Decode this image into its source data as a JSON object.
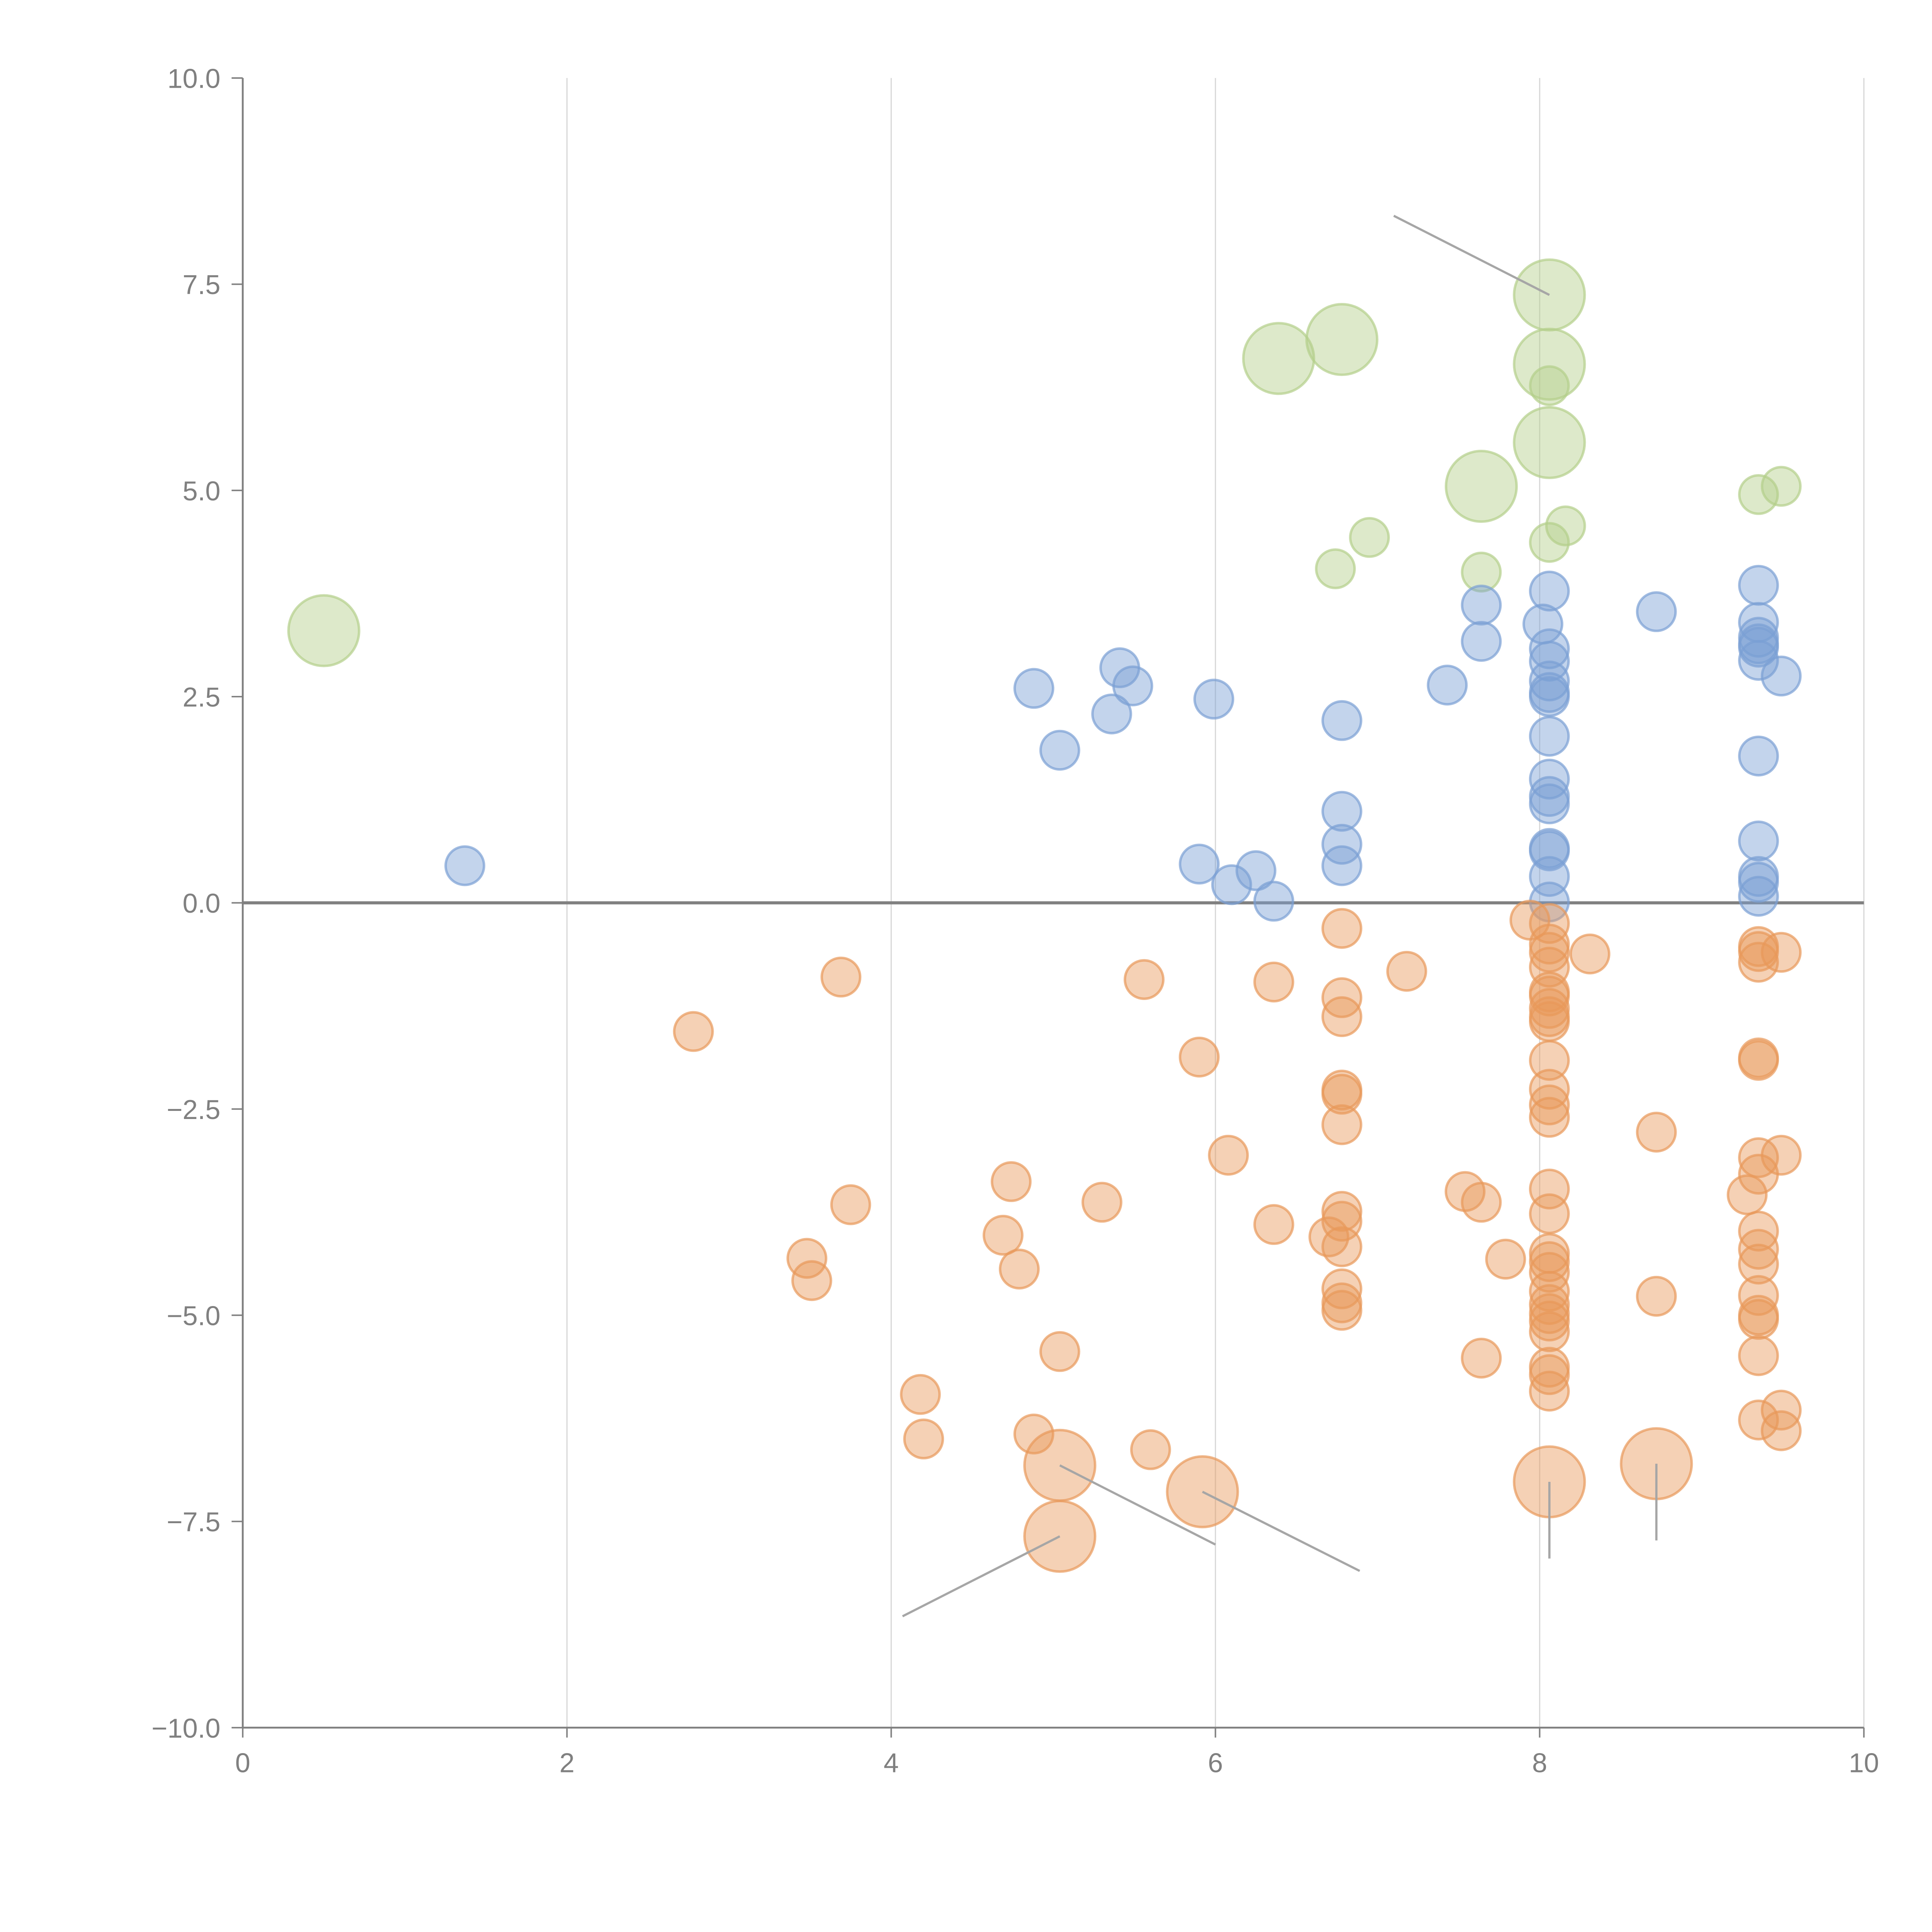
{
  "chart_data": {
    "type": "scatter",
    "title": "",
    "xlabel": "",
    "ylabel": "",
    "xlim": [
      0,
      10
    ],
    "ylim": [
      -10,
      10
    ],
    "grid": "vertical",
    "legend": "none",
    "x_ticks": [
      "0",
      "2",
      "4",
      "6",
      "8",
      "10"
    ],
    "x_tick_values": [
      0,
      2,
      4,
      6,
      8,
      10
    ],
    "y_ticks": [
      "10.0",
      "7.5",
      "5.0",
      "2.5",
      "0.0",
      "−2.5",
      "−5.0",
      "−7.5",
      "−10.0"
    ],
    "y_tick_values": [
      10,
      7.5,
      5,
      2.5,
      0,
      -2.5,
      -5,
      -7.5,
      -10
    ],
    "colors": {
      "blue": "#7b9fd4",
      "orange": "#e8995a",
      "green": "#b3cf8a",
      "axis": "#808080",
      "grid": "#d9d9d9"
    },
    "series": [
      {
        "name": "green",
        "color_key": "green",
        "points": [
          {
            "x": 0.5,
            "y": 3.3,
            "size": "large"
          },
          {
            "x": 6.39,
            "y": 6.6,
            "size": "large"
          },
          {
            "x": 6.78,
            "y": 6.83,
            "size": "large"
          },
          {
            "x": 8.06,
            "y": 7.37,
            "size": "large"
          },
          {
            "x": 8.06,
            "y": 6.53,
            "size": "large"
          },
          {
            "x": 8.06,
            "y": 6.27,
            "size": "small"
          },
          {
            "x": 8.06,
            "y": 5.58,
            "size": "large"
          },
          {
            "x": 7.64,
            "y": 5.05,
            "size": "large"
          },
          {
            "x": 9.35,
            "y": 4.95,
            "size": "small"
          },
          {
            "x": 9.49,
            "y": 5.05,
            "size": "small"
          },
          {
            "x": 8.16,
            "y": 4.57,
            "size": "small"
          },
          {
            "x": 8.06,
            "y": 4.37,
            "size": "small"
          },
          {
            "x": 6.95,
            "y": 4.43,
            "size": "small"
          },
          {
            "x": 6.74,
            "y": 4.05,
            "size": "small"
          },
          {
            "x": 7.64,
            "y": 4.01,
            "size": "small"
          }
        ]
      },
      {
        "name": "blue",
        "color_key": "blue",
        "points": [
          {
            "x": 1.37,
            "y": 0.45,
            "size": "small"
          },
          {
            "x": 4.88,
            "y": 2.6,
            "size": "small"
          },
          {
            "x": 5.04,
            "y": 1.85,
            "size": "small"
          },
          {
            "x": 5.41,
            "y": 2.85,
            "size": "small"
          },
          {
            "x": 5.49,
            "y": 2.63,
            "size": "small"
          },
          {
            "x": 5.36,
            "y": 2.29,
            "size": "small"
          },
          {
            "x": 5.99,
            "y": 2.47,
            "size": "small"
          },
          {
            "x": 5.9,
            "y": 0.47,
            "size": "small"
          },
          {
            "x": 6.1,
            "y": 0.22,
            "size": "small"
          },
          {
            "x": 6.25,
            "y": 0.39,
            "size": "small"
          },
          {
            "x": 6.36,
            "y": 0.02,
            "size": "small"
          },
          {
            "x": 6.78,
            "y": 2.21,
            "size": "small"
          },
          {
            "x": 6.78,
            "y": 1.11,
            "size": "small"
          },
          {
            "x": 6.78,
            "y": 0.71,
            "size": "small"
          },
          {
            "x": 6.78,
            "y": 0.45,
            "size": "small"
          },
          {
            "x": 7.43,
            "y": 2.64,
            "size": "small"
          },
          {
            "x": 7.64,
            "y": 3.61,
            "size": "small"
          },
          {
            "x": 7.64,
            "y": 3.17,
            "size": "small"
          },
          {
            "x": 8.06,
            "y": 3.78,
            "size": "small"
          },
          {
            "x": 8.02,
            "y": 3.38,
            "size": "small"
          },
          {
            "x": 8.06,
            "y": 3.08,
            "size": "small"
          },
          {
            "x": 8.06,
            "y": 2.93,
            "size": "small"
          },
          {
            "x": 8.06,
            "y": 2.69,
            "size": "small"
          },
          {
            "x": 8.06,
            "y": 2.55,
            "size": "small"
          },
          {
            "x": 8.06,
            "y": 2.5,
            "size": "small"
          },
          {
            "x": 8.06,
            "y": 2.02,
            "size": "small"
          },
          {
            "x": 8.06,
            "y": 1.5,
            "size": "small"
          },
          {
            "x": 8.06,
            "y": 1.29,
            "size": "small"
          },
          {
            "x": 8.06,
            "y": 1.2,
            "size": "small"
          },
          {
            "x": 8.06,
            "y": 0.66,
            "size": "small"
          },
          {
            "x": 8.06,
            "y": 0.63,
            "size": "small"
          },
          {
            "x": 8.06,
            "y": 0.32,
            "size": "small"
          },
          {
            "x": 8.06,
            "y": 0.01,
            "size": "small"
          },
          {
            "x": 8.72,
            "y": 3.53,
            "size": "small"
          },
          {
            "x": 9.35,
            "y": 3.85,
            "size": "small"
          },
          {
            "x": 9.35,
            "y": 3.4,
            "size": "small"
          },
          {
            "x": 9.35,
            "y": 3.22,
            "size": "small"
          },
          {
            "x": 9.35,
            "y": 3.14,
            "size": "small"
          },
          {
            "x": 9.35,
            "y": 3.1,
            "size": "small"
          },
          {
            "x": 9.35,
            "y": 2.94,
            "size": "small"
          },
          {
            "x": 9.49,
            "y": 2.75,
            "size": "small"
          },
          {
            "x": 9.35,
            "y": 1.78,
            "size": "small"
          },
          {
            "x": 9.35,
            "y": 0.75,
            "size": "small"
          },
          {
            "x": 9.35,
            "y": 0.32,
            "size": "small"
          },
          {
            "x": 9.35,
            "y": 0.25,
            "size": "small"
          },
          {
            "x": 9.35,
            "y": 0.08,
            "size": "small"
          }
        ]
      },
      {
        "name": "orange",
        "color_key": "orange",
        "points": [
          {
            "x": 2.78,
            "y": -1.56,
            "size": "small"
          },
          {
            "x": 3.69,
            "y": -0.9,
            "size": "small"
          },
          {
            "x": 3.75,
            "y": -3.66,
            "size": "small"
          },
          {
            "x": 3.48,
            "y": -4.31,
            "size": "small"
          },
          {
            "x": 3.51,
            "y": -4.58,
            "size": "small"
          },
          {
            "x": 4.18,
            "y": -5.96,
            "size": "small"
          },
          {
            "x": 4.2,
            "y": -6.5,
            "size": "small"
          },
          {
            "x": 4.74,
            "y": -3.38,
            "size": "small"
          },
          {
            "x": 4.69,
            "y": -4.03,
            "size": "small"
          },
          {
            "x": 4.79,
            "y": -4.44,
            "size": "small"
          },
          {
            "x": 4.88,
            "y": -6.44,
            "size": "small"
          },
          {
            "x": 5.04,
            "y": -5.44,
            "size": "small"
          },
          {
            "x": 5.04,
            "y": -6.82,
            "size": "large"
          },
          {
            "x": 5.04,
            "y": -7.68,
            "size": "large"
          },
          {
            "x": 5.3,
            "y": -3.63,
            "size": "small"
          },
          {
            "x": 5.56,
            "y": -0.93,
            "size": "small"
          },
          {
            "x": 5.6,
            "y": -6.63,
            "size": "small"
          },
          {
            "x": 5.9,
            "y": -1.87,
            "size": "small"
          },
          {
            "x": 5.92,
            "y": -7.14,
            "size": "large"
          },
          {
            "x": 6.08,
            "y": -3.06,
            "size": "small"
          },
          {
            "x": 6.36,
            "y": -0.96,
            "size": "small"
          },
          {
            "x": 6.36,
            "y": -3.9,
            "size": "small"
          },
          {
            "x": 6.7,
            "y": -4.05,
            "size": "small"
          },
          {
            "x": 6.78,
            "y": -0.31,
            "size": "small"
          },
          {
            "x": 6.78,
            "y": -1.15,
            "size": "small"
          },
          {
            "x": 6.78,
            "y": -1.38,
            "size": "small"
          },
          {
            "x": 6.78,
            "y": -2.27,
            "size": "small"
          },
          {
            "x": 6.78,
            "y": -2.32,
            "size": "small"
          },
          {
            "x": 6.78,
            "y": -2.69,
            "size": "small"
          },
          {
            "x": 6.78,
            "y": -3.74,
            "size": "small"
          },
          {
            "x": 6.78,
            "y": -3.86,
            "size": "small"
          },
          {
            "x": 6.78,
            "y": -4.17,
            "size": "small"
          },
          {
            "x": 6.78,
            "y": -4.68,
            "size": "small"
          },
          {
            "x": 6.78,
            "y": -4.85,
            "size": "small"
          },
          {
            "x": 6.78,
            "y": -4.94,
            "size": "small"
          },
          {
            "x": 7.18,
            "y": -0.83,
            "size": "small"
          },
          {
            "x": 7.54,
            "y": -3.5,
            "size": "small"
          },
          {
            "x": 7.64,
            "y": -3.63,
            "size": "small"
          },
          {
            "x": 7.64,
            "y": -5.52,
            "size": "small"
          },
          {
            "x": 7.79,
            "y": -4.32,
            "size": "small"
          },
          {
            "x": 7.94,
            "y": -0.21,
            "size": "small"
          },
          {
            "x": 8.06,
            "y": -0.25,
            "size": "small"
          },
          {
            "x": 8.06,
            "y": -0.5,
            "size": "small"
          },
          {
            "x": 8.06,
            "y": -0.6,
            "size": "small"
          },
          {
            "x": 8.06,
            "y": -0.78,
            "size": "small"
          },
          {
            "x": 8.06,
            "y": -1.08,
            "size": "small"
          },
          {
            "x": 8.06,
            "y": -1.13,
            "size": "small"
          },
          {
            "x": 8.06,
            "y": -1.28,
            "size": "small"
          },
          {
            "x": 8.06,
            "y": -1.38,
            "size": "small"
          },
          {
            "x": 8.06,
            "y": -1.44,
            "size": "small"
          },
          {
            "x": 8.06,
            "y": -1.91,
            "size": "small"
          },
          {
            "x": 8.06,
            "y": -2.26,
            "size": "small"
          },
          {
            "x": 8.06,
            "y": -2.45,
            "size": "small"
          },
          {
            "x": 8.06,
            "y": -2.6,
            "size": "small"
          },
          {
            "x": 8.06,
            "y": -3.47,
            "size": "small"
          },
          {
            "x": 8.06,
            "y": -3.77,
            "size": "small"
          },
          {
            "x": 8.06,
            "y": -4.25,
            "size": "small"
          },
          {
            "x": 8.06,
            "y": -4.35,
            "size": "small"
          },
          {
            "x": 8.06,
            "y": -4.48,
            "size": "small"
          },
          {
            "x": 8.06,
            "y": -4.71,
            "size": "small"
          },
          {
            "x": 8.06,
            "y": -4.87,
            "size": "small"
          },
          {
            "x": 8.06,
            "y": -4.98,
            "size": "small"
          },
          {
            "x": 8.06,
            "y": -5.07,
            "size": "small"
          },
          {
            "x": 8.06,
            "y": -5.2,
            "size": "small"
          },
          {
            "x": 8.06,
            "y": -5.63,
            "size": "small"
          },
          {
            "x": 8.06,
            "y": -5.72,
            "size": "small"
          },
          {
            "x": 8.06,
            "y": -5.92,
            "size": "small"
          },
          {
            "x": 8.06,
            "y": -7.02,
            "size": "large"
          },
          {
            "x": 8.31,
            "y": -0.62,
            "size": "small"
          },
          {
            "x": 8.72,
            "y": -2.78,
            "size": "small"
          },
          {
            "x": 8.72,
            "y": -4.77,
            "size": "small"
          },
          {
            "x": 8.72,
            "y": -6.8,
            "size": "large"
          },
          {
            "x": 9.28,
            "y": -3.54,
            "size": "small"
          },
          {
            "x": 9.35,
            "y": -0.53,
            "size": "small"
          },
          {
            "x": 9.35,
            "y": -0.59,
            "size": "small"
          },
          {
            "x": 9.35,
            "y": -0.72,
            "size": "small"
          },
          {
            "x": 9.35,
            "y": -1.88,
            "size": "small"
          },
          {
            "x": 9.35,
            "y": -1.91,
            "size": "small"
          },
          {
            "x": 9.35,
            "y": -3.09,
            "size": "small"
          },
          {
            "x": 9.35,
            "y": -3.29,
            "size": "small"
          },
          {
            "x": 9.35,
            "y": -3.98,
            "size": "small"
          },
          {
            "x": 9.35,
            "y": -4.2,
            "size": "small"
          },
          {
            "x": 9.35,
            "y": -4.38,
            "size": "small"
          },
          {
            "x": 9.35,
            "y": -4.76,
            "size": "small"
          },
          {
            "x": 9.35,
            "y": -5.0,
            "size": "small"
          },
          {
            "x": 9.35,
            "y": -5.05,
            "size": "small"
          },
          {
            "x": 9.35,
            "y": -5.49,
            "size": "small"
          },
          {
            "x": 9.35,
            "y": -6.27,
            "size": "small"
          },
          {
            "x": 9.49,
            "y": -0.6,
            "size": "small"
          },
          {
            "x": 9.49,
            "y": -3.06,
            "size": "small"
          },
          {
            "x": 9.49,
            "y": -6.15,
            "size": "small"
          },
          {
            "x": 9.49,
            "y": -6.4,
            "size": "small"
          }
        ]
      }
    ],
    "leader_lines": [
      {
        "from": [
          8.06,
          7.37
        ],
        "to": [
          7.1,
          8.33
        ],
        "color": "gray"
      },
      {
        "from": [
          5.04,
          -7.68
        ],
        "to": [
          4.07,
          -8.65
        ],
        "color": "gray"
      },
      {
        "from": [
          5.04,
          -6.82
        ],
        "to": [
          6.0,
          -7.78
        ],
        "color": "gray"
      },
      {
        "from": [
          5.92,
          -7.14
        ],
        "to": [
          6.89,
          -8.1
        ],
        "color": "gray"
      },
      {
        "from": [
          8.06,
          -7.02
        ],
        "to": [
          8.06,
          -7.95
        ],
        "color": "gray"
      },
      {
        "from": [
          8.72,
          -6.8
        ],
        "to": [
          8.72,
          -7.73
        ],
        "color": "gray"
      }
    ]
  }
}
